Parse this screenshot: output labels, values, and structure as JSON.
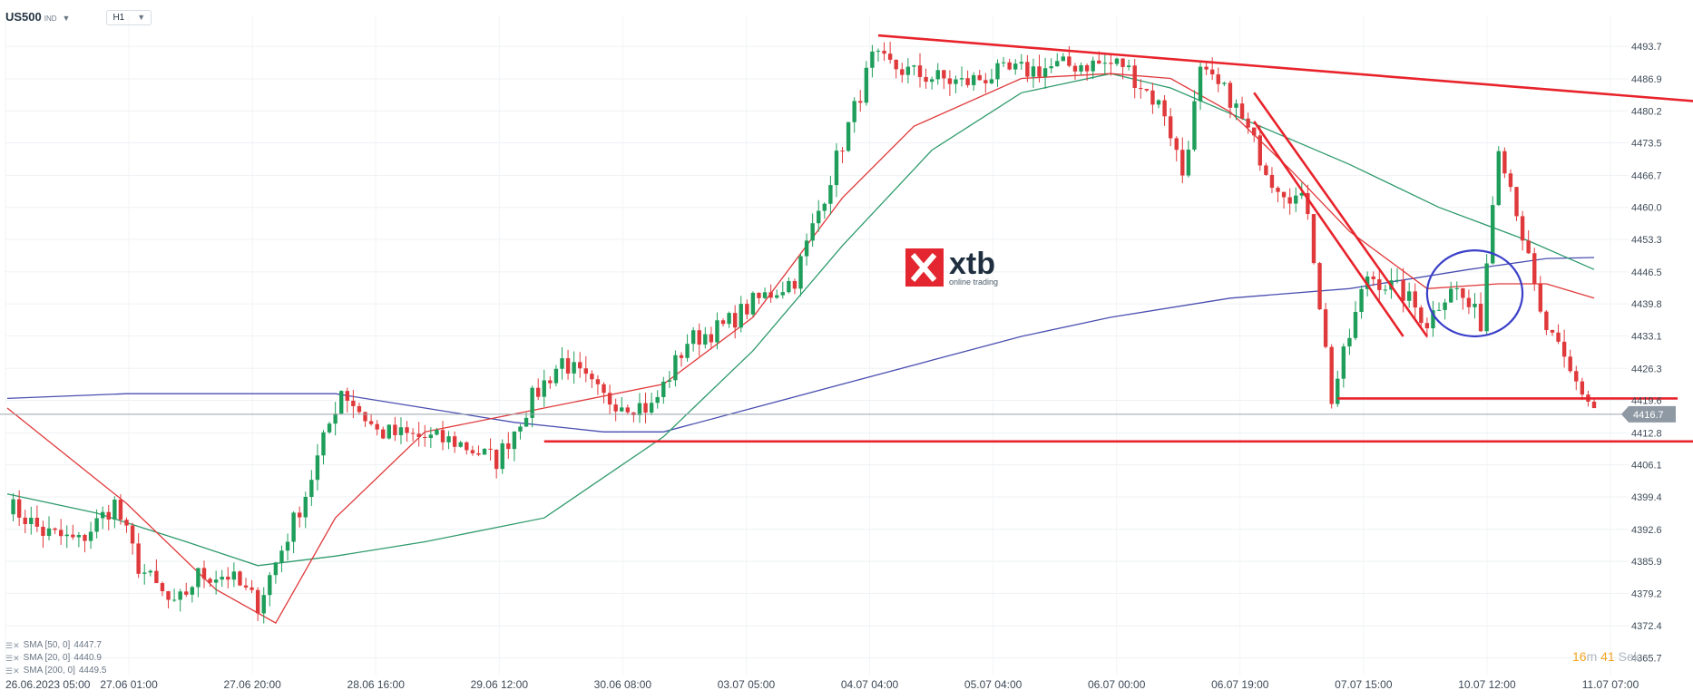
{
  "header": {
    "symbol": "US500",
    "symbol_suffix": "IND",
    "timeframe": "H1"
  },
  "watermark": {
    "brand": "xtb",
    "tagline": "online trading"
  },
  "indicators": [
    {
      "label": "SMA [50, 0]",
      "value": "4447.7",
      "color": "#2e9a6c"
    },
    {
      "label": "SMA [20, 0]",
      "value": "4440.9",
      "color": "#e0393b"
    },
    {
      "label": "SMA [200, 0]",
      "value": "4449.5",
      "color": "#4a4fb0"
    }
  ],
  "countdown": {
    "minutes": "16",
    "minutes_unit": "m",
    "seconds": "41",
    "seconds_unit": "Sek"
  },
  "colors": {
    "up": "#1e9e5a",
    "down": "#e0393b",
    "trend": "#e8232b",
    "circle": "#3a3fc8",
    "price_line": "#9aa3ad",
    "price_tag": "#8f99a4"
  },
  "chart_data": {
    "type": "candlestick",
    "ylim": [
      4362.0,
      4500.0
    ],
    "y_ticks": [
      "4493.7",
      "4486.9",
      "4480.2",
      "4473.5",
      "4466.7",
      "4460.0",
      "4453.3",
      "4446.5",
      "4439.8",
      "4433.1",
      "4426.3",
      "4419.6",
      "4412.8",
      "4406.1",
      "4399.4",
      "4392.6",
      "4385.9",
      "4379.2",
      "4372.4",
      "4365.7"
    ],
    "x_labels": [
      "26.06.2023  05:00",
      "27.06  01:00",
      "27.06  20:00",
      "28.06  16:00",
      "29.06  12:00",
      "30.06  08:00",
      "03.07  05:00",
      "04.07  04:00",
      "05.07  04:00",
      "06.07  00:00",
      "06.07  19:00",
      "07.07  15:00",
      "10.07  12:00",
      "11.07  07:00"
    ],
    "current_price": "4416.7",
    "price_anchors": [
      [
        0,
        4398
      ],
      [
        6,
        4392
      ],
      [
        12,
        4390
      ],
      [
        18,
        4398
      ],
      [
        22,
        4385
      ],
      [
        28,
        4376
      ],
      [
        32,
        4383
      ],
      [
        37,
        4383
      ],
      [
        42,
        4377
      ],
      [
        50,
        4400
      ],
      [
        56,
        4422
      ],
      [
        62,
        4413
      ],
      [
        68,
        4412
      ],
      [
        75,
        4411
      ],
      [
        82,
        4407
      ],
      [
        88,
        4420
      ],
      [
        93,
        4428
      ],
      [
        100,
        4420
      ],
      [
        108,
        4418
      ],
      [
        114,
        4432
      ],
      [
        120,
        4435
      ],
      [
        125,
        4440
      ],
      [
        132,
        4445
      ],
      [
        139,
        4470
      ],
      [
        145,
        4491
      ],
      [
        152,
        4488
      ],
      [
        160,
        4486
      ],
      [
        166,
        4488
      ],
      [
        173,
        4489
      ],
      [
        180,
        4490
      ],
      [
        187,
        4490
      ],
      [
        194,
        4480
      ],
      [
        197,
        4467
      ],
      [
        200,
        4488
      ],
      [
        205,
        4483
      ],
      [
        212,
        4466
      ],
      [
        218,
        4460
      ],
      [
        222,
        4420
      ],
      [
        228,
        4446
      ],
      [
        234,
        4442
      ],
      [
        238,
        4436
      ],
      [
        242,
        4444
      ],
      [
        247,
        4436
      ],
      [
        250,
        4474
      ],
      [
        253,
        4460
      ],
      [
        257,
        4437
      ],
      [
        262,
        4425
      ],
      [
        266,
        4418
      ]
    ],
    "sma20_path": [
      [
        0,
        4418
      ],
      [
        20,
        4398
      ],
      [
        35,
        4380
      ],
      [
        45,
        4373
      ],
      [
        55,
        4395
      ],
      [
        70,
        4413
      ],
      [
        90,
        4418
      ],
      [
        110,
        4423
      ],
      [
        125,
        4437
      ],
      [
        140,
        4462
      ],
      [
        152,
        4477
      ],
      [
        170,
        4487
      ],
      [
        185,
        4488
      ],
      [
        195,
        4487
      ],
      [
        205,
        4480
      ],
      [
        215,
        4468
      ],
      [
        225,
        4455
      ],
      [
        238,
        4443
      ],
      [
        250,
        4444
      ],
      [
        258,
        4444
      ],
      [
        266,
        4441
      ]
    ],
    "sma50_path": [
      [
        0,
        4400
      ],
      [
        15,
        4396
      ],
      [
        30,
        4390
      ],
      [
        42,
        4385
      ],
      [
        55,
        4387
      ],
      [
        70,
        4390
      ],
      [
        90,
        4395
      ],
      [
        110,
        4412
      ],
      [
        125,
        4430
      ],
      [
        140,
        4452
      ],
      [
        155,
        4472
      ],
      [
        170,
        4484
      ],
      [
        185,
        4488
      ],
      [
        195,
        4485
      ],
      [
        210,
        4477
      ],
      [
        225,
        4469
      ],
      [
        240,
        4460
      ],
      [
        255,
        4453
      ],
      [
        266,
        4447
      ]
    ],
    "sma200_path": [
      [
        0,
        4420
      ],
      [
        20,
        4421
      ],
      [
        40,
        4421
      ],
      [
        55,
        4421
      ],
      [
        70,
        4418
      ],
      [
        85,
        4415
      ],
      [
        100,
        4413
      ],
      [
        110,
        4413
      ],
      [
        125,
        4418
      ],
      [
        140,
        4423
      ],
      [
        155,
        4428
      ],
      [
        170,
        4433
      ],
      [
        185,
        4437
      ],
      [
        205,
        4441
      ],
      [
        225,
        4443
      ],
      [
        245,
        4447
      ],
      [
        258,
        4449.3
      ],
      [
        266,
        4449.5
      ]
    ],
    "trendlines": [
      {
        "from": [
          146,
          4496
        ],
        "to": [
          305,
          4480
        ]
      },
      {
        "from": [
          209,
          4484
        ],
        "to": [
          238,
          4433
        ]
      },
      {
        "from": [
          209,
          4478
        ],
        "to": [
          234,
          4433
        ]
      },
      {
        "from": [
          223,
          4420
        ],
        "to": [
          280,
          4420
        ]
      },
      {
        "from": [
          90,
          4411
        ],
        "to": [
          283,
          4411
        ]
      }
    ],
    "highlight_circle": {
      "center": [
        246,
        4442
      ],
      "rx": 8,
      "ry_price": 9
    }
  }
}
